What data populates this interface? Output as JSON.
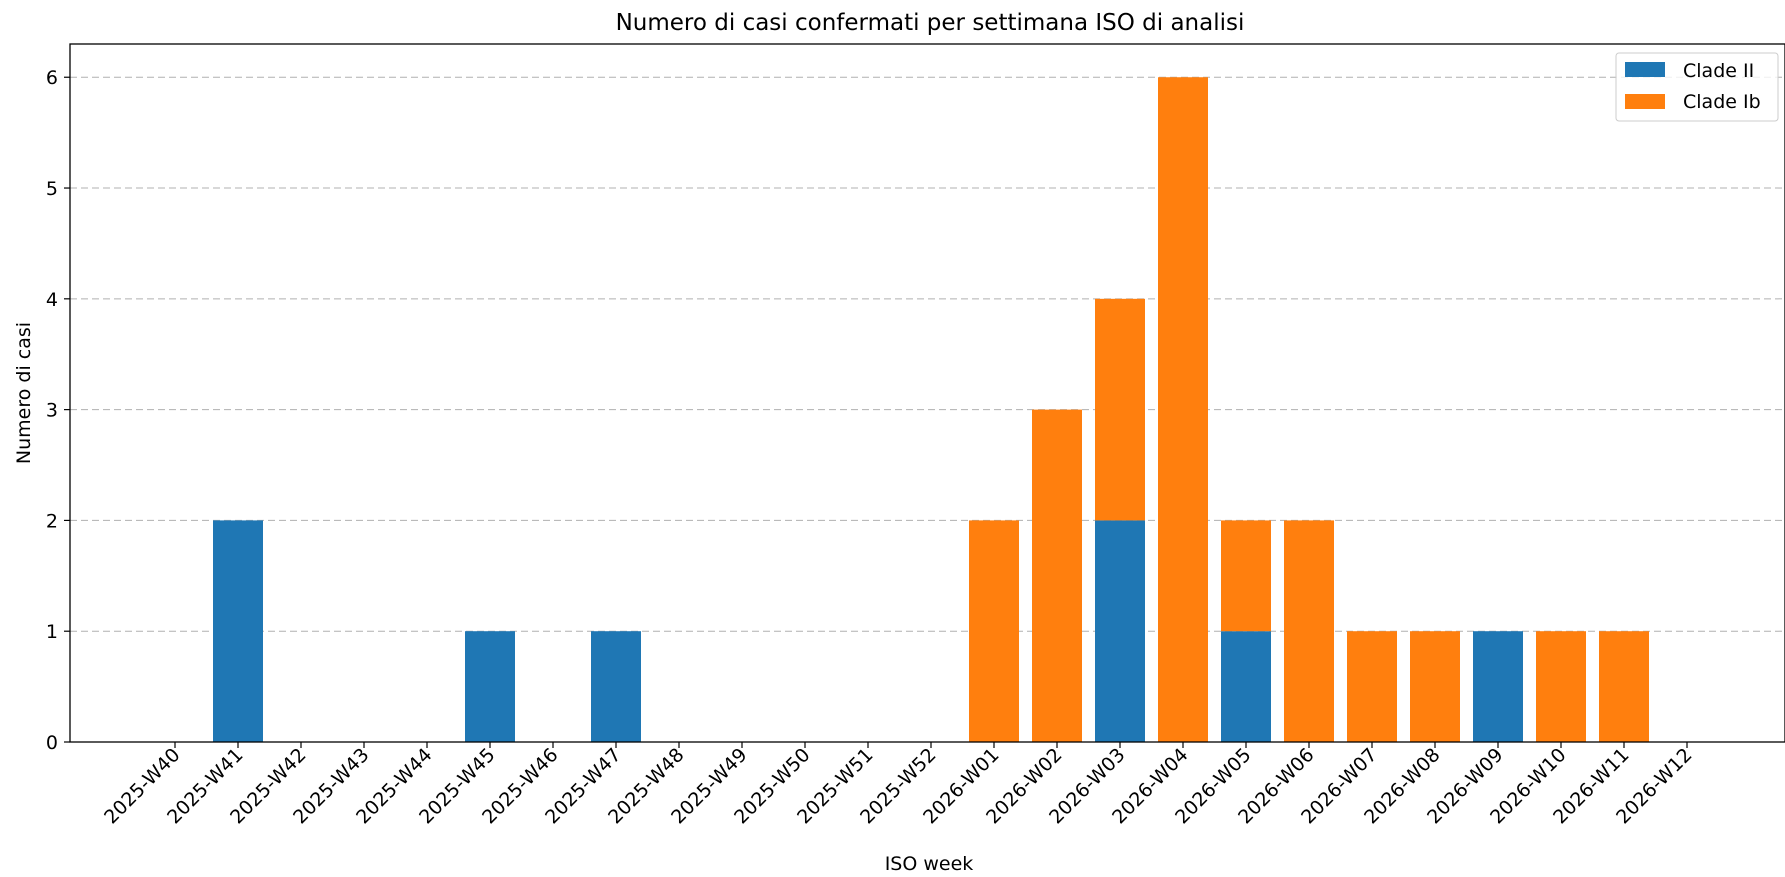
{
  "chart_data": {
    "type": "bar",
    "stacked": true,
    "title": "Numero di casi confermati per settimana ISO di analisi",
    "xlabel": "ISO week",
    "ylabel": "Numero di casi",
    "categories": [
      "2025-W40",
      "2025-W41",
      "2025-W42",
      "2025-W43",
      "2025-W44",
      "2025-W45",
      "2025-W46",
      "2025-W47",
      "2025-W48",
      "2025-W49",
      "2025-W50",
      "2025-W51",
      "2025-W52",
      "2026-W01",
      "2026-W02",
      "2026-W03",
      "2026-W04",
      "2026-W05",
      "2026-W06",
      "2026-W07",
      "2026-W08",
      "2026-W09",
      "2026-W10",
      "2026-W11",
      "2026-W12"
    ],
    "series": [
      {
        "name": "Clade II",
        "color": "#1f77b4",
        "values": [
          0,
          2,
          0,
          0,
          0,
          1,
          0,
          1,
          0,
          0,
          0,
          0,
          0,
          0,
          0,
          2,
          0,
          1,
          0,
          0,
          0,
          1,
          0,
          0,
          0
        ]
      },
      {
        "name": "Clade Ib",
        "color": "#ff7f0e",
        "values": [
          0,
          0,
          0,
          0,
          0,
          0,
          0,
          0,
          0,
          0,
          0,
          0,
          0,
          2,
          3,
          2,
          6,
          1,
          2,
          1,
          1,
          0,
          1,
          1,
          0
        ]
      }
    ],
    "ylim": [
      0,
      6.3
    ],
    "yticks": [
      "0",
      "1",
      "2",
      "3",
      "4",
      "5",
      "6"
    ],
    "grid": "horizontal dashed",
    "legend_position": "top-right"
  }
}
